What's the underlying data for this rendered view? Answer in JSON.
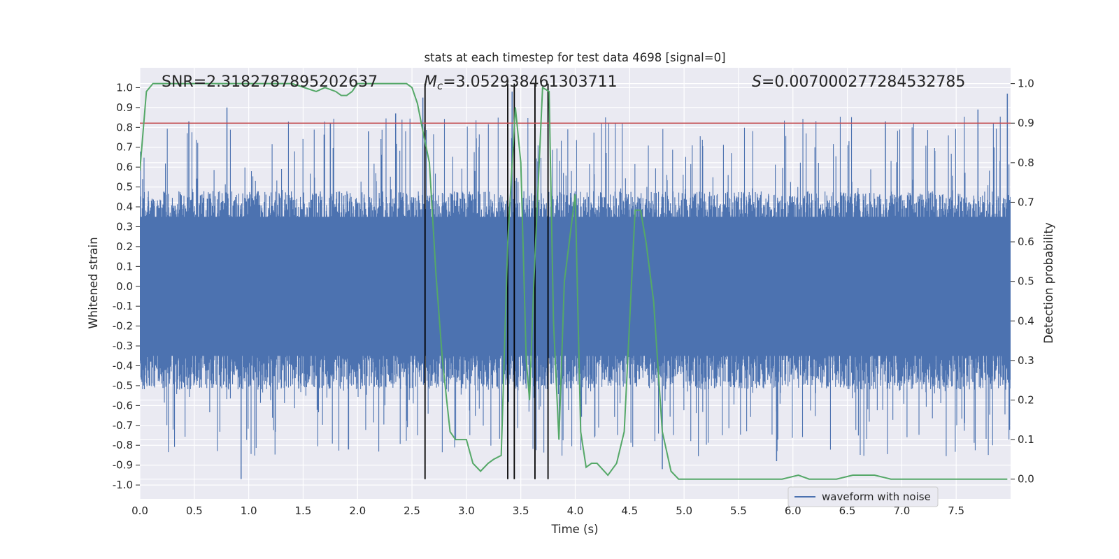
{
  "chart_data": {
    "type": "line",
    "title": "stats at each timestep for test data 4698 [signal=0]",
    "xlabel": "Time (s)",
    "ylabel": "Whitened strain",
    "y2label": "Detection probability",
    "xlim": [
      0.0,
      8.0
    ],
    "ylim": [
      -1.07,
      1.1
    ],
    "y2lim": [
      -0.05,
      1.04
    ],
    "xticks": [
      "0.0",
      "0.5",
      "1.0",
      "1.5",
      "2.0",
      "2.5",
      "3.0",
      "3.5",
      "4.0",
      "4.5",
      "5.0",
      "5.5",
      "6.0",
      "6.5",
      "7.0",
      "7.5"
    ],
    "yticks": [
      "1.0",
      "0.9",
      "0.8",
      "0.7",
      "0.6",
      "0.5",
      "0.4",
      "0.3",
      "0.2",
      "0.1",
      "0.0",
      "-0.1",
      "-0.2",
      "-0.3",
      "-0.4",
      "-0.5",
      "-0.6",
      "-0.7",
      "-0.8",
      "-0.9",
      "-1.0"
    ],
    "y2ticks": [
      "1.0",
      "0.9",
      "0.8",
      "0.7",
      "0.6",
      "0.5",
      "0.4",
      "0.3",
      "0.2",
      "0.1",
      "0.0"
    ],
    "grid": true,
    "legend_position": "bottom-right",
    "annotations": {
      "snr": "SNR=2.3182787895202637",
      "mc_symbol": "M",
      "mc_sub": "c",
      "mc_value": "=3.052938461303711",
      "s_symbol": "S",
      "s_value": "=0.007000277284532785"
    },
    "threshold": {
      "value": 0.9,
      "color": "#c44e52"
    },
    "vertical_markers": [
      2.62,
      3.38,
      3.44,
      3.63,
      3.75
    ],
    "series": [
      {
        "name": "waveform with noise",
        "color": "#4c72b0",
        "axis": "left",
        "kind": "noise",
        "envelope": {
          "typical_max": 0.48,
          "typical_min": -0.52,
          "peak_max": 0.98,
          "peak_min": -0.97
        },
        "spikes": [
          [
            0.45,
            0.83
          ],
          [
            0.8,
            0.9
          ],
          [
            0.93,
            -0.97
          ],
          [
            1.75,
            0.82
          ],
          [
            2.1,
            0.78
          ],
          [
            2.35,
            0.87
          ],
          [
            2.6,
            0.95
          ],
          [
            3.42,
            0.98
          ],
          [
            4.8,
            -0.92
          ],
          [
            5.85,
            -0.88
          ],
          [
            6.85,
            0.83
          ],
          [
            7.7,
            0.89
          ],
          [
            7.97,
            0.97
          ]
        ]
      },
      {
        "name": "",
        "color": "#55a868",
        "axis": "right",
        "kind": "line",
        "x": [
          0.0,
          0.06,
          0.12,
          0.3,
          0.6,
          1.0,
          1.4,
          1.62,
          1.7,
          1.8,
          1.85,
          1.9,
          1.95,
          2.0,
          2.2,
          2.45,
          2.5,
          2.55,
          2.6,
          2.66,
          2.72,
          2.78,
          2.85,
          2.9,
          3.0,
          3.06,
          3.13,
          3.2,
          3.25,
          3.32,
          3.38,
          3.45,
          3.5,
          3.55,
          3.58,
          3.62,
          3.7,
          3.76,
          3.8,
          3.85,
          3.9,
          4.0,
          4.05,
          4.1,
          4.15,
          4.2,
          4.3,
          4.38,
          4.45,
          4.55,
          4.6,
          4.65,
          4.72,
          4.8,
          4.88,
          4.95,
          5.05,
          5.5,
          5.9,
          6.05,
          6.15,
          6.4,
          6.55,
          6.75,
          6.9,
          7.1,
          7.5,
          7.97
        ],
        "y": [
          0.78,
          0.98,
          1.0,
          1.0,
          1.0,
          1.0,
          1.0,
          0.98,
          0.99,
          0.98,
          0.97,
          0.97,
          0.98,
          1.0,
          1.0,
          1.0,
          0.99,
          0.95,
          0.88,
          0.8,
          0.52,
          0.3,
          0.12,
          0.1,
          0.1,
          0.04,
          0.02,
          0.04,
          0.05,
          0.06,
          0.6,
          0.94,
          0.8,
          0.3,
          0.2,
          0.5,
          0.99,
          0.98,
          0.4,
          0.1,
          0.5,
          0.72,
          0.12,
          0.03,
          0.04,
          0.04,
          0.01,
          0.04,
          0.12,
          0.68,
          0.68,
          0.6,
          0.45,
          0.12,
          0.02,
          0.0,
          0.0,
          0.0,
          0.0,
          0.01,
          0.0,
          0.0,
          0.01,
          0.01,
          0.0,
          0.0,
          0.0,
          0.0
        ]
      }
    ]
  }
}
